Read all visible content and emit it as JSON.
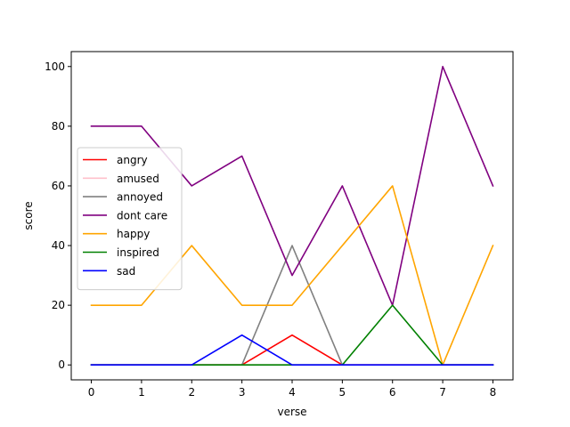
{
  "chart_data": {
    "type": "line",
    "xlabel": "verse",
    "ylabel": "score",
    "x": [
      0,
      1,
      2,
      3,
      4,
      5,
      6,
      7,
      8
    ],
    "xlim": [
      -0.4,
      8.4
    ],
    "ylim": [
      -5,
      105
    ],
    "xticks": [
      0,
      1,
      2,
      3,
      4,
      5,
      6,
      7,
      8
    ],
    "yticks": [
      0,
      20,
      40,
      60,
      80,
      100
    ],
    "grid": false,
    "legend_placement": "center-left",
    "series": [
      {
        "name": "angry",
        "color": "#ff0000",
        "values": [
          0,
          0,
          0,
          0,
          10,
          0,
          0,
          0,
          0
        ]
      },
      {
        "name": "amused",
        "color": "#ffc0cb",
        "values": [
          0,
          0,
          0,
          0,
          0,
          0,
          0,
          0,
          0
        ]
      },
      {
        "name": "annoyed",
        "color": "#808080",
        "values": [
          0,
          0,
          0,
          0,
          40,
          0,
          0,
          0,
          0
        ]
      },
      {
        "name": "dont care",
        "color": "#800080",
        "values": [
          80,
          80,
          60,
          70,
          30,
          60,
          20,
          100,
          60
        ]
      },
      {
        "name": "happy",
        "color": "#ffa500",
        "values": [
          20,
          20,
          40,
          20,
          20,
          40,
          60,
          0,
          40
        ]
      },
      {
        "name": "inspired",
        "color": "#008000",
        "values": [
          0,
          0,
          0,
          0,
          0,
          0,
          20,
          0,
          0
        ]
      },
      {
        "name": "sad",
        "color": "#0000ff",
        "values": [
          0,
          0,
          0,
          10,
          0,
          0,
          0,
          0,
          0
        ]
      }
    ]
  }
}
